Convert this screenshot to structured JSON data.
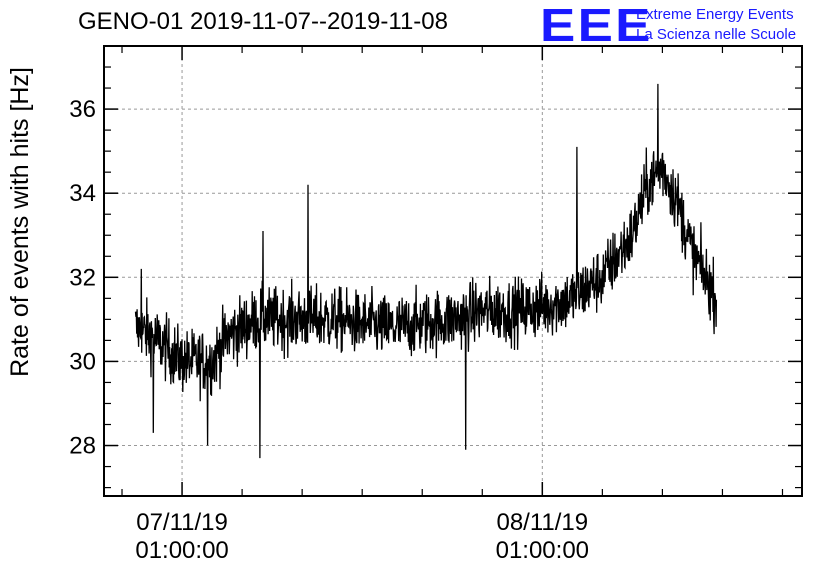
{
  "header": {
    "title": "GENO-01 2019-11-07--2019-11-08"
  },
  "logo": {
    "mark": "EEE",
    "line1": "Extreme Energy Events",
    "line2": "La Scienza nelle Scuole",
    "color": "#1a1aff"
  },
  "chart_data": {
    "type": "line",
    "title": "GENO-01 2019-11-07--2019-11-08",
    "ylabel": "Rate of events with hits [Hz]",
    "xlabel": "",
    "ylim": [
      26.8,
      37.5
    ],
    "xlim": [
      -5.2,
      41.3
    ],
    "x_unit": "hours since 07/11/19 01:00:00",
    "yticks": [
      28,
      30,
      32,
      34,
      36
    ],
    "xticks": [
      {
        "x": 0,
        "label_line1": "07/11/19",
        "label_line2": "01:00:00"
      },
      {
        "x": 24,
        "label_line1": "08/11/19",
        "label_line2": "01:00:00"
      }
    ],
    "grid": true,
    "series": [
      {
        "name": "",
        "color": "#000000",
        "noise_amplitude": 0.9,
        "x_start": -3.1,
        "x_end": 35.6,
        "trend_x": [
          -3.1,
          -2.0,
          0.0,
          2.0,
          3.0,
          5.0,
          7.0,
          10.0,
          14.0,
          18.0,
          20.0,
          22.0,
          24.0,
          26.0,
          28.0,
          30.0,
          31.0,
          32.0,
          33.0,
          34.0,
          35.6
        ],
        "trend_y": [
          30.8,
          30.6,
          30.0,
          30.0,
          30.6,
          31.0,
          31.0,
          31.0,
          30.8,
          31.0,
          31.2,
          31.2,
          31.3,
          31.5,
          32.0,
          33.0,
          34.2,
          34.6,
          33.8,
          32.6,
          31.5
        ],
        "spikes": [
          {
            "x": -2.7,
            "y": 32.2
          },
          {
            "x": -1.9,
            "y": 28.3
          },
          {
            "x": 1.7,
            "y": 28.0
          },
          {
            "x": 5.4,
            "y": 33.1
          },
          {
            "x": 5.2,
            "y": 27.7
          },
          {
            "x": 8.4,
            "y": 34.2
          },
          {
            "x": 18.9,
            "y": 27.9
          },
          {
            "x": 31.7,
            "y": 36.6
          },
          {
            "x": 26.3,
            "y": 35.1
          }
        ]
      }
    ]
  }
}
